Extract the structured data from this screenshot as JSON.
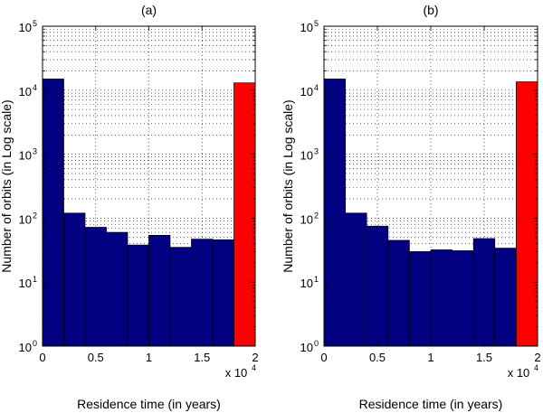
{
  "chart_data": [
    {
      "type": "bar",
      "title": "(a)",
      "xlabel": "Residence time (in years)",
      "ylabel": "Number of orbits (in Log scale)",
      "x_multiplier": "x 10",
      "x_multiplier_exp": "4",
      "xlim": [
        0,
        20000
      ],
      "ylim_log10": [
        0,
        5
      ],
      "x_ticks": [
        0,
        5000,
        10000,
        15000,
        20000
      ],
      "x_tick_labels": [
        "0",
        "0.5",
        "1",
        "1.5",
        "2"
      ],
      "y_ticks_log10": [
        0,
        1,
        2,
        3,
        4,
        5
      ],
      "y_tick_base": "10",
      "y_tick_exps": [
        "0",
        "1",
        "2",
        "3",
        "4",
        "5"
      ],
      "grid": true,
      "bins": [
        {
          "x0": 0,
          "x1": 2000,
          "value": 15000,
          "color": "#000080"
        },
        {
          "x0": 2000,
          "x1": 4000,
          "value": 120,
          "color": "#000080"
        },
        {
          "x0": 4000,
          "x1": 6000,
          "value": 72,
          "color": "#000080"
        },
        {
          "x0": 6000,
          "x1": 8000,
          "value": 60,
          "color": "#000080"
        },
        {
          "x0": 8000,
          "x1": 10000,
          "value": 38,
          "color": "#000080"
        },
        {
          "x0": 10000,
          "x1": 12000,
          "value": 54,
          "color": "#000080"
        },
        {
          "x0": 12000,
          "x1": 14000,
          "value": 35,
          "color": "#000080"
        },
        {
          "x0": 14000,
          "x1": 16000,
          "value": 47,
          "color": "#000080"
        },
        {
          "x0": 16000,
          "x1": 18000,
          "value": 46,
          "color": "#000080"
        },
        {
          "x0": 18000,
          "x1": 20000,
          "value": 13000,
          "color": "#ff0000"
        }
      ]
    },
    {
      "type": "bar",
      "title": "(b)",
      "xlabel": "Residence time (in years)",
      "ylabel": "Number of orbits (in Log scale)",
      "x_multiplier": "x 10",
      "x_multiplier_exp": "4",
      "xlim": [
        0,
        20000
      ],
      "ylim_log10": [
        0,
        5
      ],
      "x_ticks": [
        0,
        5000,
        10000,
        15000,
        20000
      ],
      "x_tick_labels": [
        "0",
        "0.5",
        "1",
        "1.5",
        "2"
      ],
      "y_ticks_log10": [
        0,
        1,
        2,
        3,
        4,
        5
      ],
      "y_tick_base": "10",
      "y_tick_exps": [
        "0",
        "1",
        "2",
        "3",
        "4",
        "5"
      ],
      "grid": true,
      "bins": [
        {
          "x0": 0,
          "x1": 2000,
          "value": 15000,
          "color": "#000080"
        },
        {
          "x0": 2000,
          "x1": 4000,
          "value": 120,
          "color": "#000080"
        },
        {
          "x0": 4000,
          "x1": 6000,
          "value": 75,
          "color": "#000080"
        },
        {
          "x0": 6000,
          "x1": 8000,
          "value": 45,
          "color": "#000080"
        },
        {
          "x0": 8000,
          "x1": 10000,
          "value": 30,
          "color": "#000080"
        },
        {
          "x0": 10000,
          "x1": 12000,
          "value": 32,
          "color": "#000080"
        },
        {
          "x0": 12000,
          "x1": 14000,
          "value": 31,
          "color": "#000080"
        },
        {
          "x0": 14000,
          "x1": 16000,
          "value": 48,
          "color": "#000080"
        },
        {
          "x0": 16000,
          "x1": 18000,
          "value": 34,
          "color": "#000080"
        },
        {
          "x0": 18000,
          "x1": 20000,
          "value": 13500,
          "color": "#ff0000"
        }
      ]
    }
  ]
}
